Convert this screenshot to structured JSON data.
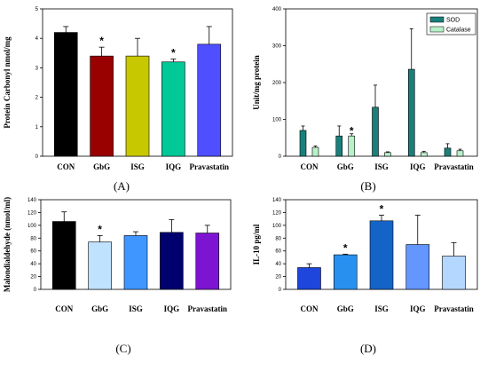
{
  "chart_data": [
    {
      "type": "bar",
      "panel_label": "(A)",
      "ylabel": "Protein Carbonyl nmol/mg",
      "categories": [
        "CON",
        "GbG",
        "ISG",
        "IQG",
        "Pravastatin"
      ],
      "values": [
        4.2,
        3.4,
        3.4,
        3.2,
        3.8
      ],
      "errors": [
        0.2,
        0.3,
        0.6,
        0.1,
        0.6
      ],
      "significant": [
        false,
        true,
        false,
        true,
        false
      ],
      "significance_marker": "*",
      "colors": [
        "#000000",
        "#990000",
        "#c8c800",
        "#00c896",
        "#4f4fff"
      ],
      "ylim": [
        0,
        5
      ],
      "yticks": [
        0,
        1,
        2,
        3,
        4,
        5
      ],
      "grid": false
    },
    {
      "type": "bar",
      "panel_label": "(B)",
      "ylabel": "Unit/mg protein",
      "categories": [
        "CON",
        "GbG",
        "ISG",
        "IQG",
        "Pravastatin"
      ],
      "series": [
        {
          "name": "SOD",
          "color": "#1a7f7a",
          "values": [
            70,
            55,
            133,
            236,
            22
          ],
          "errors": [
            12,
            27,
            60,
            110,
            12
          ]
        },
        {
          "name": "Catalase",
          "color": "#b8f0c8",
          "values": [
            24,
            55,
            10,
            10,
            15
          ],
          "errors": [
            4,
            6,
            2,
            3,
            4
          ]
        }
      ],
      "significant": [
        [
          false,
          false,
          false,
          false,
          false
        ],
        [
          false,
          true,
          false,
          false,
          false
        ]
      ],
      "significance_marker": "*",
      "legend_position": "top-right",
      "ylim": [
        0,
        400
      ],
      "yticks": [
        0,
        100,
        200,
        300,
        400
      ],
      "grid": false
    },
    {
      "type": "bar",
      "panel_label": "(C)",
      "ylabel": "Malondialdehyde (nmol/ml)",
      "categories": [
        "CON",
        "GbG",
        "ISG",
        "IQG",
        "Pravastatin"
      ],
      "values": [
        106,
        74,
        84,
        89,
        88
      ],
      "errors": [
        15,
        10,
        6,
        20,
        12
      ],
      "significant": [
        false,
        true,
        false,
        false,
        false
      ],
      "significance_marker": "*",
      "colors": [
        "#000000",
        "#bfe2ff",
        "#3f96ff",
        "#00006e",
        "#7d14d2"
      ],
      "ylim": [
        0,
        140
      ],
      "yticks": [
        0,
        20,
        40,
        60,
        80,
        100,
        120,
        140
      ],
      "grid": false
    },
    {
      "type": "bar",
      "panel_label": "(D)",
      "ylabel": "IL-10 pg/ml",
      "categories": [
        "CON",
        "GbG",
        "ISG",
        "IQG",
        "Pravastatin"
      ],
      "values": [
        34,
        54,
        107,
        70,
        52
      ],
      "errors": [
        6,
        1,
        9,
        46,
        21
      ],
      "significant": [
        false,
        true,
        true,
        false,
        false
      ],
      "significance_marker": "*",
      "colors": [
        "#1e46dc",
        "#2891f0",
        "#1464c8",
        "#6496ff",
        "#b4d7ff"
      ],
      "ylim": [
        0,
        140
      ],
      "yticks": [
        0,
        20,
        40,
        60,
        80,
        100,
        120,
        140
      ],
      "grid": false
    }
  ]
}
